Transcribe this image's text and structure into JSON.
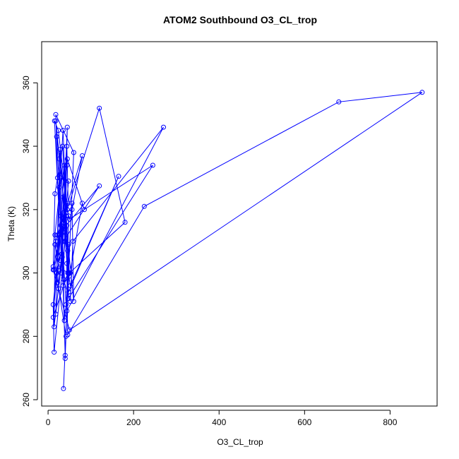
{
  "chart_data": {
    "type": "line",
    "title": "ATOM2 Southbound O3_CL_trop",
    "xlabel": "O3_CL_trop",
    "ylabel": "Theta (K)",
    "xlim": [
      -15,
      910
    ],
    "ylim": [
      258,
      373
    ],
    "x_ticks": [
      0,
      200,
      400,
      600,
      800
    ],
    "y_ticks": [
      260,
      280,
      300,
      320,
      340,
      360
    ],
    "x_tick_labels": [
      "0",
      "200",
      "400",
      "600",
      "800"
    ],
    "y_tick_labels": [
      "260",
      "280",
      "300",
      "320",
      "340",
      "360"
    ],
    "grid": false,
    "legend": "none",
    "series_color": "#0000ff",
    "marker": "open-circle",
    "series": [
      {
        "x": [
          36,
          48,
          60,
          18,
          22,
          30,
          12,
          14,
          40,
          44,
          47,
          12,
          52,
          35,
          28,
          15,
          24,
          45,
          120,
          180,
          50,
          38,
          30,
          16,
          25,
          42,
          48,
          20,
          42,
          56,
          60,
          18,
          26,
          40,
          33,
          14,
          16,
          30,
          45,
          36,
          52,
          58,
          270,
          44,
          40,
          48,
          32,
          14,
          22,
          38,
          44,
          52,
          165,
          48,
          28,
          22,
          35,
          42,
          46,
          225,
          680,
          875,
          50,
          12,
          16,
          34,
          50,
          80,
          85,
          45,
          30,
          120,
          36,
          20,
          25,
          44,
          48,
          245,
          50,
          36,
          46,
          12,
          30,
          40,
          46,
          35,
          28,
          48,
          18,
          26,
          32,
          44,
          36,
          56,
          80,
          18,
          28
        ],
        "y": [
          263.5,
          300,
          338,
          350,
          330,
          315,
          290,
          275,
          310,
          340,
          322,
          302,
          300,
          296,
          312,
          348,
          345,
          320,
          352,
          316,
          300,
          285,
          330,
          312,
          295,
          280,
          318,
          343,
          290,
          322,
          291,
          348,
          336,
          274,
          305,
          283,
          309,
          300,
          346,
          298,
          291,
          310,
          346,
          288,
          273,
          309,
          314,
          301,
          297,
          334,
          303,
          296,
          330.5,
          294,
          339,
          312,
          317,
          318,
          280.5,
          321,
          354,
          357,
          282,
          301,
          325,
          340,
          299,
          322,
          320,
          336,
          313,
          327.5,
          310,
          300,
          312,
          315,
          292,
          334,
          317,
          324,
          300,
          286,
          318,
          314,
          307,
          345,
          330,
          329,
          287,
          327,
          306,
          334,
          319,
          320,
          337,
          310,
          304
        ]
      }
    ]
  }
}
